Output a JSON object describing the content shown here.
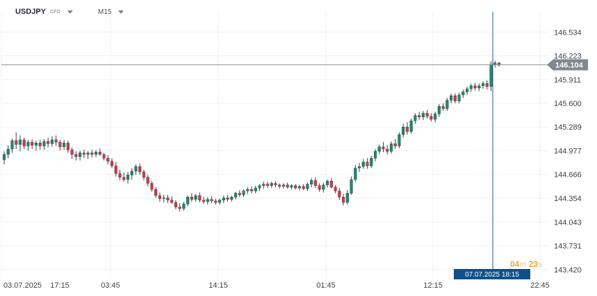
{
  "header": {
    "symbol": "USDJPY",
    "badge": "CFD",
    "timeframe": "M15"
  },
  "countdown": {
    "minutes": "04",
    "m_unit": "m",
    "seconds": "23",
    "s_unit": "s"
  },
  "colors": {
    "up": "#1c8a6e",
    "down": "#d13b48",
    "grid": "#eef0f2",
    "price_line": "#8f959c",
    "cursor": "#1d5a96",
    "price_tag": "#828890",
    "time_tag": "#10508a",
    "countdown": "#f0a830"
  },
  "chart_data": {
    "type": "candlestick",
    "symbol": "USDJPY",
    "timeframe": "M15",
    "ylim": [
      143.3,
      146.8
    ],
    "y_ticks": [
      146.534,
      146.223,
      145.911,
      145.6,
      145.289,
      144.977,
      144.666,
      144.354,
      144.043,
      143.731,
      143.42
    ],
    "x_ticks": [
      "03.07.2025",
      "17:15",
      "03:45",
      "14:15",
      "01:45",
      "12:15",
      "22:45"
    ],
    "current_price": 146.104,
    "cursor_time": "07.07.2025 18:15",
    "candles": [
      [
        144.86,
        144.97,
        144.8,
        144.93
      ],
      [
        144.93,
        145.05,
        144.88,
        145.0
      ],
      [
        145.0,
        145.14,
        144.95,
        145.11
      ],
      [
        145.11,
        145.22,
        145.0,
        145.06
      ],
      [
        145.06,
        145.18,
        144.97,
        145.12
      ],
      [
        145.12,
        145.15,
        145.0,
        145.04
      ],
      [
        145.04,
        145.12,
        144.98,
        145.09
      ],
      [
        145.09,
        145.13,
        145.0,
        145.05
      ],
      [
        145.05,
        145.11,
        144.98,
        145.08
      ],
      [
        145.08,
        145.12,
        144.99,
        145.04
      ],
      [
        145.04,
        145.13,
        144.99,
        145.1
      ],
      [
        145.1,
        145.15,
        145.02,
        145.07
      ],
      [
        145.07,
        145.17,
        145.03,
        145.12
      ],
      [
        145.12,
        145.18,
        145.04,
        145.09
      ],
      [
        145.09,
        145.12,
        144.98,
        145.03
      ],
      [
        145.03,
        145.12,
        144.99,
        145.08
      ],
      [
        145.08,
        145.11,
        144.95,
        144.99
      ],
      [
        144.99,
        145.02,
        144.87,
        144.93
      ],
      [
        144.93,
        144.97,
        144.85,
        144.9
      ],
      [
        144.9,
        144.98,
        144.85,
        144.95
      ],
      [
        144.95,
        144.99,
        144.88,
        144.93
      ],
      [
        144.93,
        144.97,
        144.87,
        144.95
      ],
      [
        144.95,
        144.99,
        144.89,
        144.93
      ],
      [
        144.93,
        144.99,
        144.89,
        144.96
      ],
      [
        144.96,
        145.01,
        144.91,
        144.93
      ],
      [
        144.93,
        144.95,
        144.85,
        144.88
      ],
      [
        144.88,
        144.92,
        144.8,
        144.84
      ],
      [
        144.84,
        144.88,
        144.75,
        144.78
      ],
      [
        144.78,
        144.83,
        144.64,
        144.68
      ],
      [
        144.68,
        144.73,
        144.59,
        144.63
      ],
      [
        144.63,
        144.69,
        144.57,
        144.6
      ],
      [
        144.6,
        144.7,
        144.55,
        144.66
      ],
      [
        144.66,
        144.75,
        144.6,
        144.71
      ],
      [
        144.71,
        144.8,
        144.66,
        144.77
      ],
      [
        144.77,
        144.81,
        144.66,
        144.7
      ],
      [
        144.7,
        144.73,
        144.59,
        144.63
      ],
      [
        144.63,
        144.66,
        144.51,
        144.55
      ],
      [
        144.55,
        144.58,
        144.44,
        144.47
      ],
      [
        144.47,
        144.5,
        144.36,
        144.39
      ],
      [
        144.39,
        144.43,
        144.31,
        144.35
      ],
      [
        144.35,
        144.4,
        144.3,
        144.36
      ],
      [
        144.36,
        144.4,
        144.29,
        144.33
      ],
      [
        144.33,
        144.38,
        144.28,
        144.3
      ],
      [
        144.3,
        144.33,
        144.21,
        144.24
      ],
      [
        144.24,
        144.29,
        144.18,
        144.22
      ],
      [
        144.22,
        144.31,
        144.19,
        144.28
      ],
      [
        144.28,
        144.39,
        144.25,
        144.37
      ],
      [
        144.37,
        144.42,
        144.31,
        144.34
      ],
      [
        144.34,
        144.41,
        144.31,
        144.39
      ],
      [
        144.39,
        144.43,
        144.3,
        144.33
      ],
      [
        144.33,
        144.37,
        144.28,
        144.31
      ],
      [
        144.31,
        144.37,
        144.27,
        144.34
      ],
      [
        144.34,
        144.38,
        144.29,
        144.32
      ],
      [
        144.32,
        144.35,
        144.27,
        144.3
      ],
      [
        144.3,
        144.35,
        144.27,
        144.33
      ],
      [
        144.33,
        144.39,
        144.29,
        144.36
      ],
      [
        144.36,
        144.4,
        144.31,
        144.34
      ],
      [
        144.34,
        144.39,
        144.31,
        144.37
      ],
      [
        144.37,
        144.44,
        144.34,
        144.42
      ],
      [
        144.42,
        144.46,
        144.37,
        144.4
      ],
      [
        144.4,
        144.47,
        144.37,
        144.45
      ],
      [
        144.45,
        144.5,
        144.41,
        144.47
      ],
      [
        144.47,
        144.51,
        144.42,
        144.45
      ],
      [
        144.45,
        144.52,
        144.42,
        144.49
      ],
      [
        144.49,
        144.54,
        144.45,
        144.52
      ],
      [
        144.52,
        144.57,
        144.48,
        144.54
      ],
      [
        144.54,
        144.57,
        144.49,
        144.52
      ],
      [
        144.52,
        144.57,
        144.49,
        144.55
      ],
      [
        144.55,
        144.58,
        144.5,
        144.53
      ],
      [
        144.53,
        144.55,
        144.48,
        144.51
      ],
      [
        144.51,
        144.55,
        144.48,
        144.53
      ],
      [
        144.53,
        144.56,
        144.48,
        144.5
      ],
      [
        144.5,
        144.54,
        144.47,
        144.52
      ],
      [
        144.52,
        144.54,
        144.47,
        144.49
      ],
      [
        144.49,
        144.53,
        144.46,
        144.51
      ],
      [
        144.51,
        144.54,
        144.46,
        144.48
      ],
      [
        144.48,
        144.56,
        144.45,
        144.54
      ],
      [
        144.54,
        144.62,
        144.5,
        144.59
      ],
      [
        144.59,
        144.63,
        144.49,
        144.52
      ],
      [
        144.52,
        144.55,
        144.44,
        144.47
      ],
      [
        144.47,
        144.56,
        144.43,
        144.53
      ],
      [
        144.53,
        144.6,
        144.5,
        144.58
      ],
      [
        144.58,
        144.62,
        144.48,
        144.5
      ],
      [
        144.5,
        144.53,
        144.42,
        144.45
      ],
      [
        144.45,
        144.49,
        144.33,
        144.37
      ],
      [
        144.37,
        144.41,
        144.26,
        144.3
      ],
      [
        144.3,
        144.46,
        144.27,
        144.42
      ],
      [
        144.42,
        144.64,
        144.4,
        144.6
      ],
      [
        144.6,
        144.79,
        144.57,
        144.75
      ],
      [
        144.75,
        144.82,
        144.7,
        144.77
      ],
      [
        144.77,
        144.87,
        144.74,
        144.83
      ],
      [
        144.83,
        144.88,
        144.74,
        144.78
      ],
      [
        144.78,
        144.91,
        144.75,
        144.88
      ],
      [
        144.88,
        145.0,
        144.84,
        144.97
      ],
      [
        144.97,
        145.06,
        144.93,
        145.03
      ],
      [
        145.03,
        145.09,
        144.96,
        145.0
      ],
      [
        145.0,
        145.05,
        144.93,
        144.97
      ],
      [
        144.97,
        145.1,
        144.94,
        145.07
      ],
      [
        145.07,
        145.13,
        145.0,
        145.04
      ],
      [
        145.04,
        145.22,
        145.01,
        145.19
      ],
      [
        145.19,
        145.33,
        145.15,
        145.29
      ],
      [
        145.29,
        145.35,
        145.19,
        145.23
      ],
      [
        145.23,
        145.4,
        145.2,
        145.37
      ],
      [
        145.37,
        145.47,
        145.33,
        145.44
      ],
      [
        145.44,
        145.49,
        145.38,
        145.42
      ],
      [
        145.42,
        145.5,
        145.38,
        145.47
      ],
      [
        145.47,
        145.51,
        145.4,
        145.43
      ],
      [
        145.43,
        145.47,
        145.36,
        145.39
      ],
      [
        145.39,
        145.49,
        145.35,
        145.46
      ],
      [
        145.46,
        145.59,
        145.42,
        145.56
      ],
      [
        145.56,
        145.6,
        145.5,
        145.53
      ],
      [
        145.53,
        145.67,
        145.5,
        145.64
      ],
      [
        145.64,
        145.73,
        145.6,
        145.7
      ],
      [
        145.7,
        145.73,
        145.6,
        145.63
      ],
      [
        145.63,
        145.74,
        145.6,
        145.71
      ],
      [
        145.71,
        145.78,
        145.67,
        145.75
      ],
      [
        145.75,
        145.82,
        145.71,
        145.79
      ],
      [
        145.79,
        145.86,
        145.75,
        145.83
      ],
      [
        145.83,
        145.87,
        145.77,
        145.8
      ],
      [
        145.8,
        145.86,
        145.76,
        145.83
      ],
      [
        145.83,
        145.89,
        145.79,
        145.86
      ],
      [
        145.86,
        145.9,
        145.78,
        145.82
      ],
      [
        145.82,
        146.15,
        145.76,
        146.11
      ],
      [
        146.11,
        146.16,
        146.07,
        146.13
      ],
      [
        146.13,
        146.14,
        146.08,
        146.1
      ]
    ]
  }
}
